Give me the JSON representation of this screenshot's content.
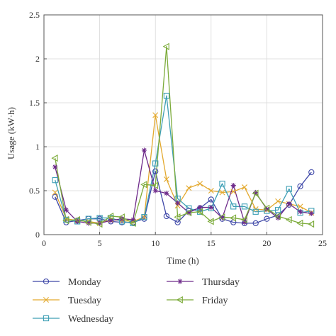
{
  "chart_data": {
    "type": "line",
    "title": "",
    "xlabel": "Time (h)",
    "ylabel": "Usage (kW·h)",
    "xlim": [
      0,
      25
    ],
    "ylim": [
      0,
      2.5
    ],
    "xticks": [
      "0",
      "5",
      "10",
      "15",
      "20",
      "25"
    ],
    "yticks": [
      "0",
      "0.5",
      "1",
      "1.5",
      "2",
      "2.5"
    ],
    "grid": true,
    "legend_position": "bottom",
    "x": [
      1,
      2,
      3,
      4,
      5,
      6,
      7,
      8,
      9,
      10,
      11,
      12,
      13,
      14,
      15,
      16,
      17,
      18,
      19,
      20,
      21,
      22,
      23,
      24
    ],
    "series": [
      {
        "name": "Monday",
        "color": "#3f48a8",
        "marker": "circle",
        "values": [
          0.43,
          0.14,
          0.16,
          0.18,
          0.18,
          0.15,
          0.14,
          0.14,
          0.18,
          0.72,
          0.21,
          0.14,
          0.27,
          0.3,
          0.4,
          0.18,
          0.14,
          0.13,
          0.13,
          0.18,
          0.22,
          0.34,
          0.55,
          0.71
        ]
      },
      {
        "name": "Tuesday",
        "color": "#e3a92f",
        "marker": "x",
        "values": [
          0.48,
          0.18,
          0.16,
          0.15,
          0.13,
          0.17,
          0.16,
          0.15,
          0.2,
          1.36,
          0.63,
          0.33,
          0.53,
          0.58,
          0.5,
          0.48,
          0.49,
          0.54,
          0.29,
          0.28,
          0.38,
          0.35,
          0.32,
          0.25
        ]
      },
      {
        "name": "Wednesday",
        "color": "#3e9fb5",
        "marker": "square",
        "values": [
          0.62,
          0.17,
          0.15,
          0.18,
          0.19,
          0.19,
          0.15,
          0.13,
          0.2,
          0.81,
          1.58,
          0.41,
          0.3,
          0.26,
          0.3,
          0.58,
          0.32,
          0.32,
          0.26,
          0.27,
          0.28,
          0.52,
          0.25,
          0.27
        ]
      },
      {
        "name": "Thursday",
        "color": "#6e2a8a",
        "marker": "star",
        "values": [
          0.77,
          0.28,
          0.15,
          0.13,
          0.13,
          0.16,
          0.18,
          0.17,
          0.96,
          0.5,
          0.47,
          0.36,
          0.25,
          0.31,
          0.31,
          0.19,
          0.56,
          0.14,
          0.48,
          0.29,
          0.19,
          0.35,
          0.26,
          0.24
        ]
      },
      {
        "name": "Friday",
        "color": "#7cab3a",
        "marker": "triangle-left",
        "values": [
          0.87,
          0.16,
          0.17,
          0.14,
          0.12,
          0.21,
          0.2,
          0.13,
          0.57,
          0.56,
          2.14,
          0.2,
          0.25,
          0.26,
          0.15,
          0.2,
          0.19,
          0.17,
          0.47,
          0.3,
          0.21,
          0.17,
          0.13,
          0.12
        ]
      }
    ]
  }
}
